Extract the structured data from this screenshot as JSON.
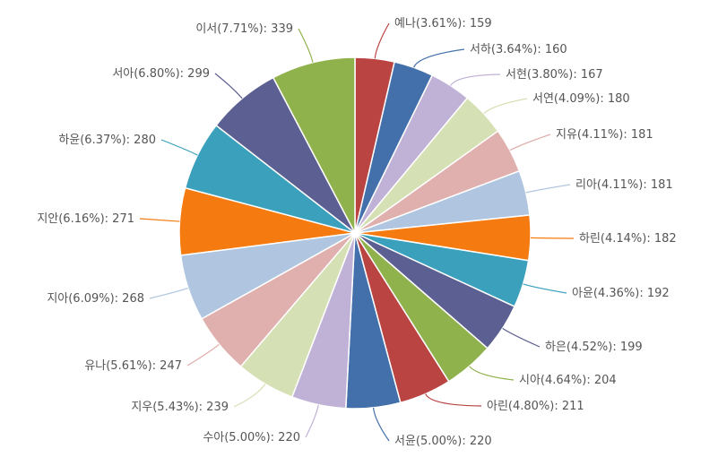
{
  "chart_data": {
    "type": "pie",
    "title": "",
    "slices": [
      {
        "name": "예나",
        "pct": "3.61%",
        "value": 159,
        "color": "#b94441"
      },
      {
        "name": "서하",
        "pct": "3.64%",
        "value": 160,
        "color": "#4370ab"
      },
      {
        "name": "서현",
        "pct": "3.80%",
        "value": 167,
        "color": "#c0b2d6"
      },
      {
        "name": "서연",
        "pct": "4.09%",
        "value": 180,
        "color": "#d6e0b5"
      },
      {
        "name": "지유",
        "pct": "4.11%",
        "value": 181,
        "color": "#e0b0ae"
      },
      {
        "name": "리아",
        "pct": "4.11%",
        "value": 181,
        "color": "#afc5e0"
      },
      {
        "name": "하린",
        "pct": "4.14%",
        "value": 182,
        "color": "#f57a0f"
      },
      {
        "name": "아윤",
        "pct": "4.36%",
        "value": 192,
        "color": "#3aa0bc"
      },
      {
        "name": "하은",
        "pct": "4.52%",
        "value": 199,
        "color": "#5c5f91"
      },
      {
        "name": "시아",
        "pct": "4.64%",
        "value": 204,
        "color": "#90b24d"
      },
      {
        "name": "아린",
        "pct": "4.80%",
        "value": 211,
        "color": "#b94441"
      },
      {
        "name": "서윤",
        "pct": "5.00%",
        "value": 220,
        "color": "#4370ab"
      },
      {
        "name": "수아",
        "pct": "5.00%",
        "value": 220,
        "color": "#c0b2d6"
      },
      {
        "name": "지우",
        "pct": "5.43%",
        "value": 239,
        "color": "#d6e0b5"
      },
      {
        "name": "유나",
        "pct": "5.61%",
        "value": 247,
        "color": "#e0b0ae"
      },
      {
        "name": "지아",
        "pct": "6.09%",
        "value": 268,
        "color": "#afc5e0"
      },
      {
        "name": "지안",
        "pct": "6.16%",
        "value": 271,
        "color": "#f57a0f"
      },
      {
        "name": "하윤",
        "pct": "6.37%",
        "value": 280,
        "color": "#3aa0bc"
      },
      {
        "name": "서아",
        "pct": "6.80%",
        "value": 299,
        "color": "#5c5f91"
      },
      {
        "name": "이서",
        "pct": "7.71%",
        "value": 339,
        "color": "#90b24d"
      }
    ]
  }
}
